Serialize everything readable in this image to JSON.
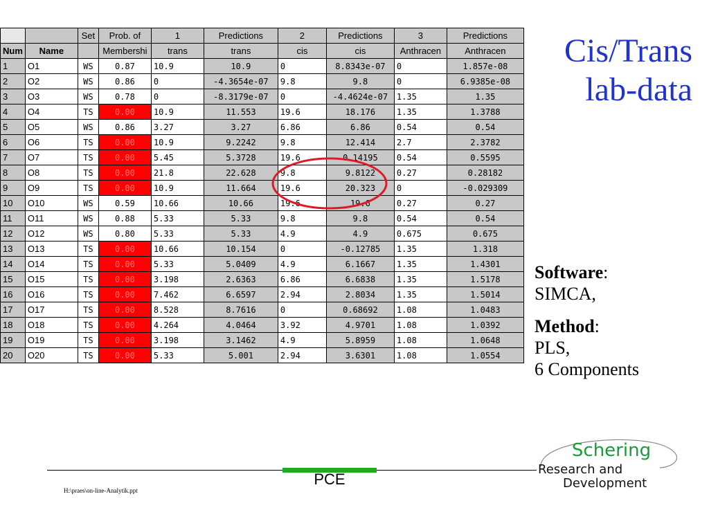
{
  "title": {
    "line1": "Cis/Trans",
    "line2": "lab-data"
  },
  "table": {
    "header1": [
      "",
      "",
      "Set",
      "Prob. of",
      "1",
      "Predictions",
      "2",
      "Predictions",
      "3",
      "Predictions"
    ],
    "header2": [
      "Num",
      "Name",
      "",
      "Membershi",
      "trans",
      "trans",
      "cis",
      "cis",
      "Anthracen",
      "Anthracen"
    ],
    "rows": [
      [
        "1",
        "O1",
        "WS",
        "0.87",
        "10.9",
        "10.9",
        "0",
        "8.8343e-07",
        "0",
        "1.857e-08"
      ],
      [
        "2",
        "O2",
        "WS",
        "0.86",
        "0",
        "-4.3654e-07",
        "9.8",
        "9.8",
        "0",
        "6.9385e-08"
      ],
      [
        "3",
        "O3",
        "WS",
        "0.78",
        "0",
        "-8.3179e-07",
        "0",
        "-4.4624e-07",
        "1.35",
        "1.35"
      ],
      [
        "4",
        "O4",
        "TS",
        "0.00",
        "10.9",
        "11.553",
        "19.6",
        "18.176",
        "1.35",
        "1.3788"
      ],
      [
        "5",
        "O5",
        "WS",
        "0.86",
        "3.27",
        "3.27",
        "6.86",
        "6.86",
        "0.54",
        "0.54"
      ],
      [
        "6",
        "O6",
        "TS",
        "0.00",
        "10.9",
        "9.2242",
        "9.8",
        "12.414",
        "2.7",
        "2.3782"
      ],
      [
        "7",
        "O7",
        "TS",
        "0.00",
        "5.45",
        "5.3728",
        "19.6",
        "0.14195",
        "0.54",
        "0.5595"
      ],
      [
        "8",
        "O8",
        "TS",
        "0.00",
        "21.8",
        "22.628",
        "9.8",
        "9.8122",
        "0.27",
        "0.28182"
      ],
      [
        "9",
        "O9",
        "TS",
        "0.00",
        "10.9",
        "11.664",
        "19.6",
        "20.323",
        "0",
        "-0.029309"
      ],
      [
        "10",
        "O10",
        "WS",
        "0.59",
        "10.66",
        "10.66",
        "19.6",
        "19.6",
        "0.27",
        "0.27"
      ],
      [
        "11",
        "O11",
        "WS",
        "0.88",
        "5.33",
        "5.33",
        "9.8",
        "9.8",
        "0.54",
        "0.54"
      ],
      [
        "12",
        "O12",
        "WS",
        "0.80",
        "5.33",
        "5.33",
        "4.9",
        "4.9",
        "0.675",
        "0.675"
      ],
      [
        "13",
        "O13",
        "TS",
        "0.00",
        "10.66",
        "10.154",
        "0",
        "-0.12785",
        "1.35",
        "1.318"
      ],
      [
        "14",
        "O14",
        "TS",
        "0.00",
        "5.33",
        "5.0409",
        "4.9",
        "6.1667",
        "1.35",
        "1.4301"
      ],
      [
        "15",
        "O15",
        "TS",
        "0.00",
        "3.198",
        "2.6363",
        "6.86",
        "6.6838",
        "1.35",
        "1.5178"
      ],
      [
        "16",
        "O16",
        "TS",
        "0.00",
        "7.462",
        "6.6597",
        "2.94",
        "2.8034",
        "1.35",
        "1.5014"
      ],
      [
        "17",
        "O17",
        "TS",
        "0.00",
        "8.528",
        "8.7616",
        "0",
        "0.68692",
        "1.08",
        "1.0483"
      ],
      [
        "18",
        "O18",
        "TS",
        "0.00",
        "4.264",
        "4.0464",
        "3.92",
        "4.9701",
        "1.08",
        "1.0392"
      ],
      [
        "19",
        "O19",
        "TS",
        "0.00",
        "3.198",
        "3.1462",
        "4.9",
        "5.8959",
        "1.08",
        "1.0648"
      ],
      [
        "20",
        "O20",
        "TS",
        "0.00",
        "5.33",
        "5.001",
        "2.94",
        "3.6301",
        "1.08",
        "1.0554"
      ]
    ]
  },
  "info": {
    "software_label": "Software",
    "software_value": "SIMCA,",
    "method_label": "Method",
    "method_line1": "PLS,",
    "method_line2": "6 Components"
  },
  "footer": {
    "center": "PCE",
    "left_path": "H:\\praes\\on-line-Analytik.ppt"
  },
  "logo": {
    "line1": "Schering",
    "line2": "Research and",
    "line3": "Development"
  },
  "colors": {
    "title_blue": "#2233cc",
    "highlight_red": "#ff0000",
    "logo_green": "#1a9a3a",
    "footer_green": "#22aa22",
    "circle_red": "#dd1a2a"
  }
}
